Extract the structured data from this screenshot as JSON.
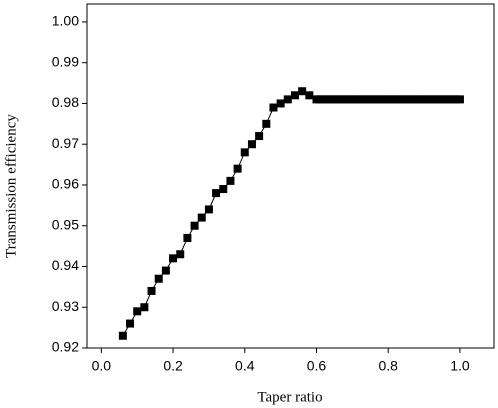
{
  "chart_data": {
    "type": "line",
    "xlabel": "Taper ratio",
    "ylabel": "Transmission efficiency",
    "x": [
      0.06,
      0.08,
      0.1,
      0.12,
      0.14,
      0.16,
      0.18,
      0.2,
      0.22,
      0.24,
      0.26,
      0.28,
      0.3,
      0.32,
      0.34,
      0.36,
      0.38,
      0.4,
      0.42,
      0.44,
      0.46,
      0.48,
      0.5,
      0.52,
      0.54,
      0.56,
      0.58,
      0.6,
      0.61,
      0.62,
      0.63,
      0.64,
      0.65,
      0.66,
      0.67,
      0.68,
      0.69,
      0.7,
      0.71,
      0.72,
      0.73,
      0.74,
      0.75,
      0.76,
      0.77,
      0.78,
      0.79,
      0.8,
      0.81,
      0.82,
      0.83,
      0.84,
      0.85,
      0.86,
      0.87,
      0.88,
      0.89,
      0.9,
      0.91,
      0.92,
      0.93,
      0.94,
      0.95,
      0.96,
      0.97,
      0.98,
      0.99,
      1.0
    ],
    "series": [
      {
        "color": "#000000",
        "values": [
          0.923,
          0.926,
          0.929,
          0.93,
          0.934,
          0.937,
          0.939,
          0.942,
          0.943,
          0.947,
          0.95,
          0.952,
          0.954,
          0.958,
          0.959,
          0.961,
          0.964,
          0.968,
          0.97,
          0.972,
          0.975,
          0.979,
          0.98,
          0.981,
          0.982,
          0.983,
          0.982,
          0.981,
          0.981,
          0.981,
          0.981,
          0.981,
          0.981,
          0.981,
          0.981,
          0.981,
          0.981,
          0.981,
          0.981,
          0.981,
          0.981,
          0.981,
          0.981,
          0.981,
          0.981,
          0.981,
          0.981,
          0.981,
          0.981,
          0.981,
          0.981,
          0.981,
          0.981,
          0.981,
          0.981,
          0.981,
          0.981,
          0.981,
          0.981,
          0.981,
          0.981,
          0.981,
          0.981,
          0.981,
          0.981,
          0.981,
          0.981,
          0.981
        ]
      }
    ],
    "xlim": [
      -0.04,
      1.095
    ],
    "ylim": [
      0.92,
      1.0044
    ],
    "xticks": [
      {
        "value": 0,
        "label": "0.0"
      },
      0.2,
      0.4,
      0.6,
      0.8,
      {
        "value": 1,
        "label": "1.0"
      }
    ],
    "yticks": [
      0.92,
      0.93,
      0.94,
      0.95,
      0.96,
      0.97,
      0.98,
      0.99,
      {
        "value": 1,
        "label": "1.00"
      }
    ],
    "grid": false
  }
}
